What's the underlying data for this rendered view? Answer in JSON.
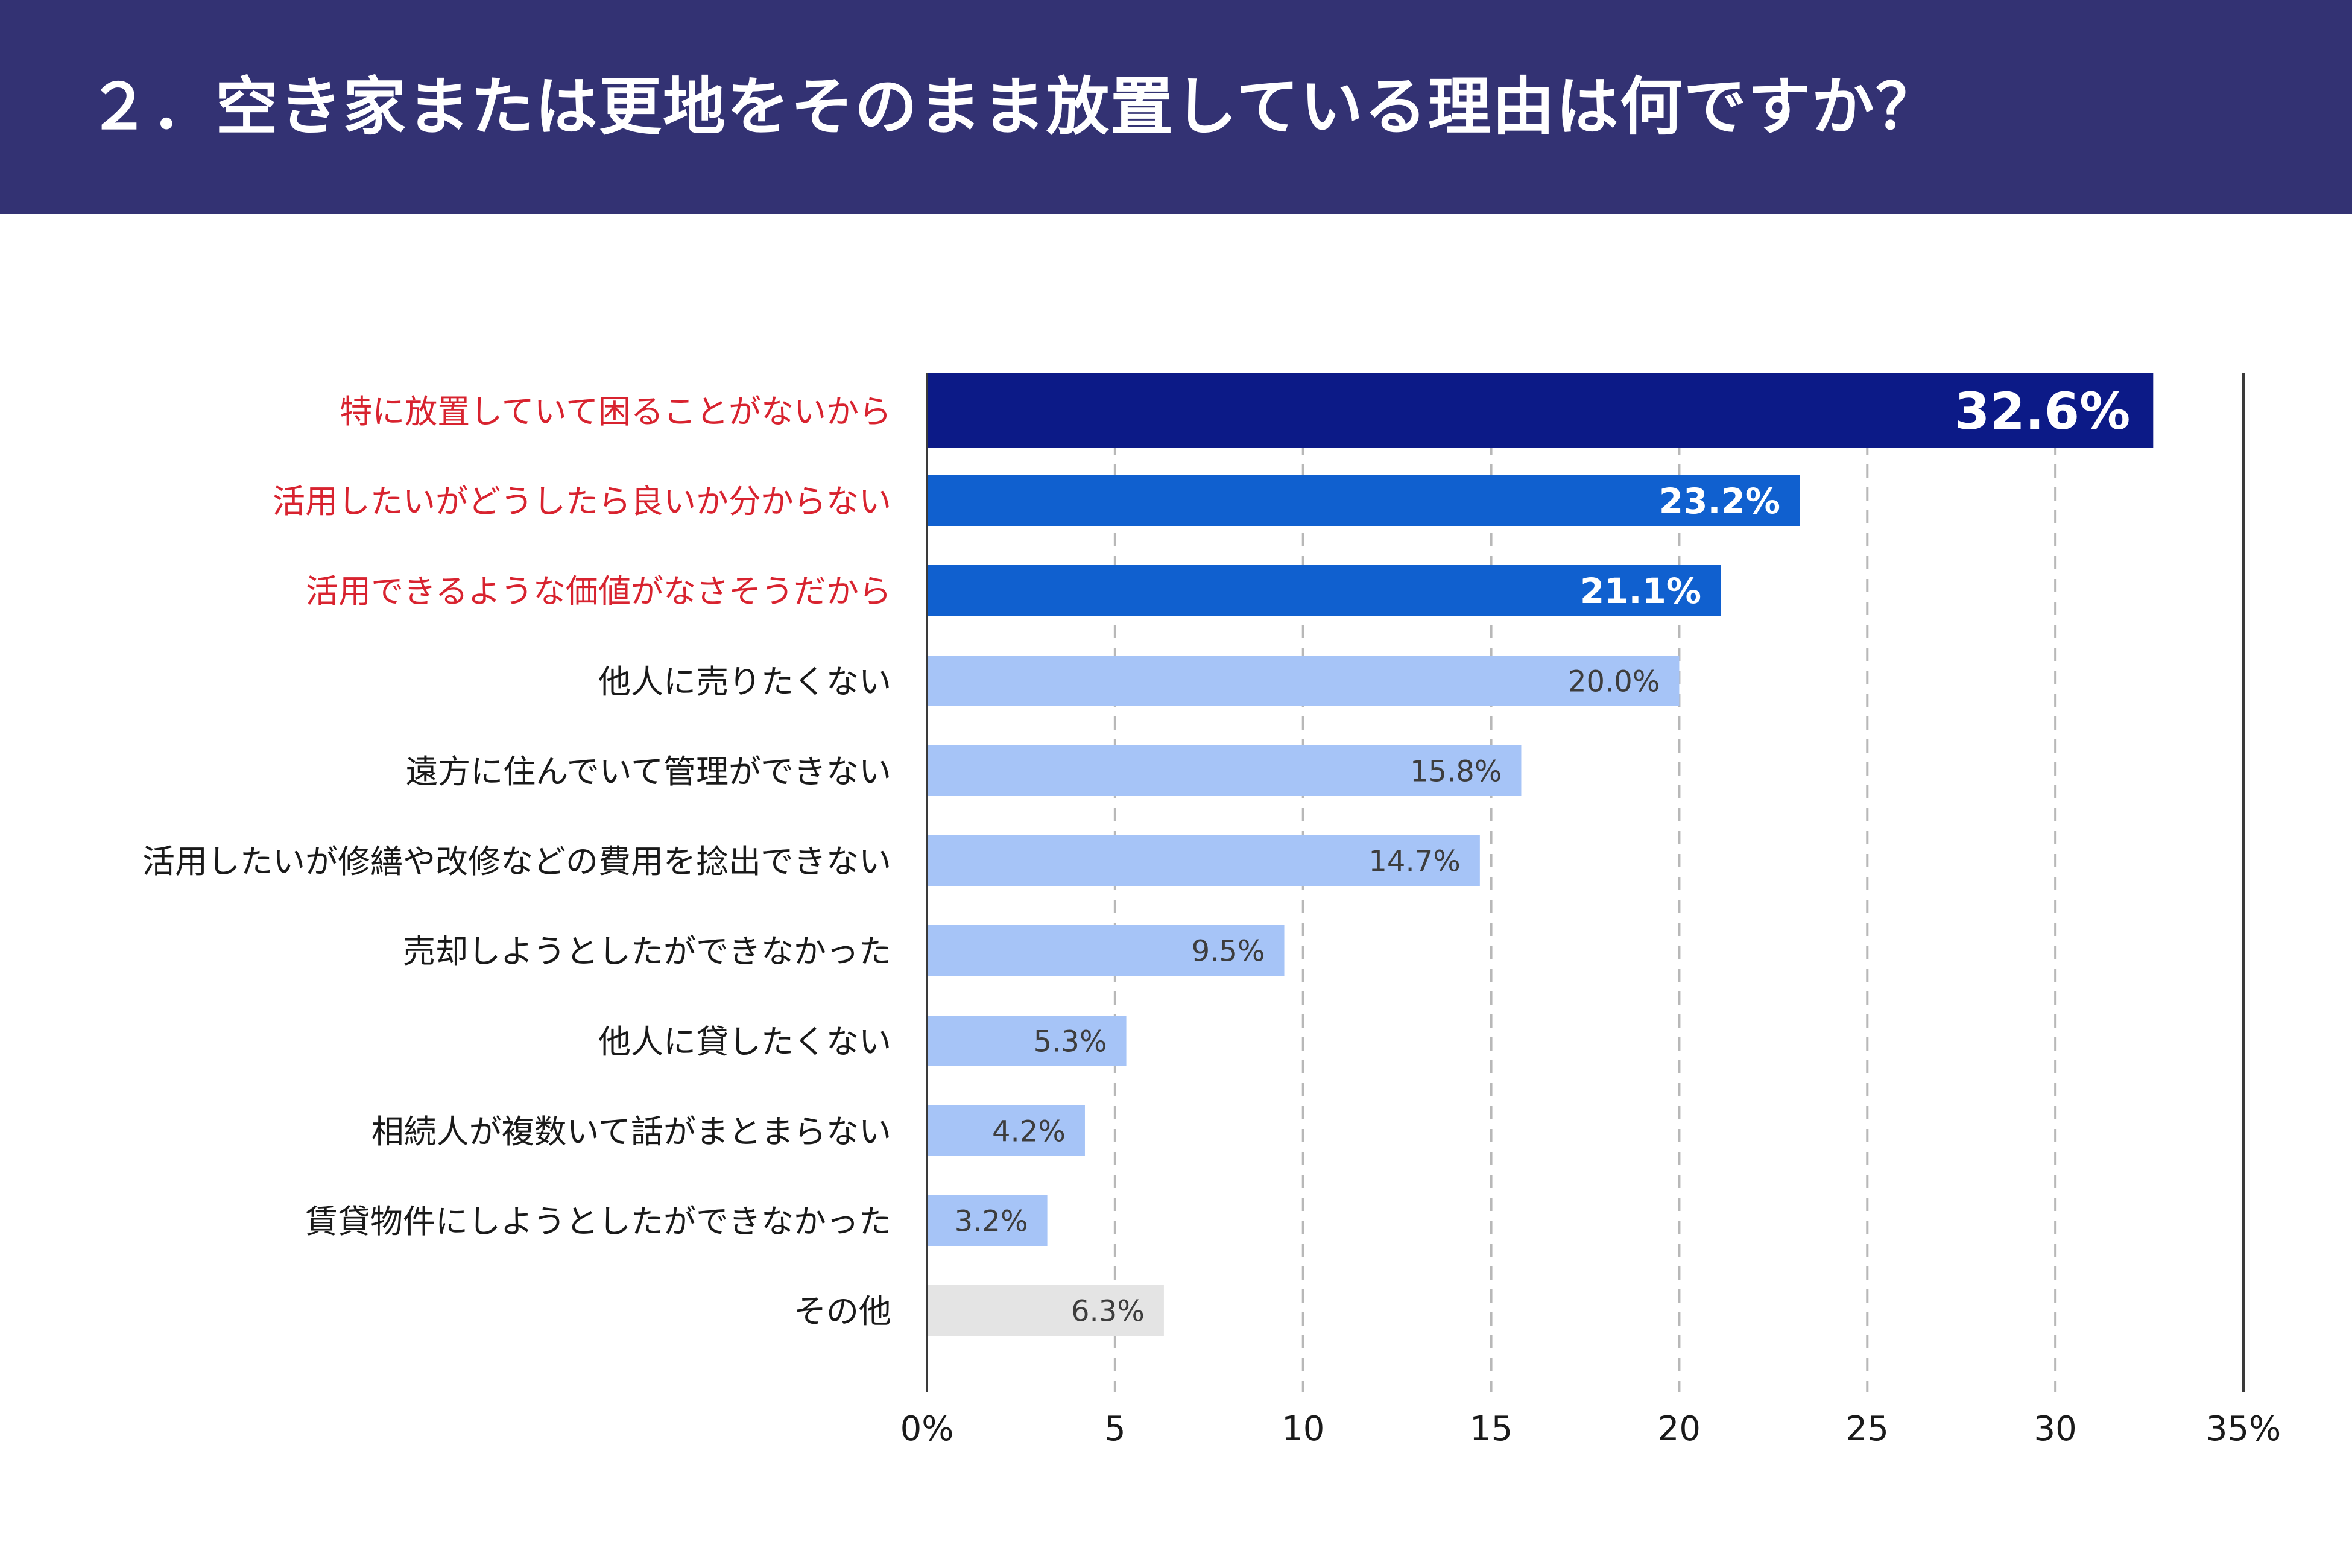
{
  "header": {
    "title": "２．空き家または更地をそのまま放置している理由は何ですか？"
  },
  "colors": {
    "header_bg": "#333273",
    "top1": "#0c1a87",
    "top": "#1060cf",
    "normal": "#a6c4f7",
    "other": "#e4e4e4",
    "highlight_label": "#d8232f",
    "label": "#1a1a1a",
    "value_dark": "#3d3d3d",
    "value_light": "#ffffff",
    "axis": "#3a3a3a",
    "grid": "#b8b8b8"
  },
  "chart_data": {
    "type": "bar",
    "orientation": "horizontal",
    "title": "２．空き家または更地をそのまま放置している理由は何ですか？",
    "xlabel": "",
    "ylabel": "",
    "xlim": [
      0,
      35
    ],
    "grid": true,
    "categories": [
      "特に放置していて困ることがないから",
      "活用したいがどうしたら良いか分からない",
      "活用できるような価値がなさそうだから",
      "他人に売りたくない",
      "遠方に住んでいて管理ができない",
      "活用したいが修繕や改修などの費用を捻出できない",
      "売却しようとしたができなかった",
      "他人に貸したくない",
      "相続人が複数いて話がまとまらない",
      "賃貸物件にしようとしたができなかった",
      "その他"
    ],
    "values": [
      32.6,
      23.2,
      21.1,
      20.0,
      15.8,
      14.7,
      9.5,
      5.3,
      4.2,
      3.2,
      6.3
    ],
    "value_labels": [
      "32.6%",
      "23.2%",
      "21.1%",
      "20.0%",
      "15.8%",
      "14.7%",
      "9.5%",
      "5.3%",
      "4.2%",
      "3.2%",
      "6.3%"
    ],
    "styles": [
      "top1",
      "top",
      "top",
      "normal",
      "normal",
      "normal",
      "normal",
      "normal",
      "normal",
      "normal",
      "other"
    ],
    "highlighted": [
      true,
      true,
      true,
      false,
      false,
      false,
      false,
      false,
      false,
      false,
      false
    ],
    "x_ticks": [
      0,
      5,
      10,
      15,
      20,
      25,
      30,
      35
    ],
    "x_tick_labels": [
      "0%",
      "5",
      "10",
      "15",
      "20",
      "25",
      "30",
      "35%"
    ]
  }
}
